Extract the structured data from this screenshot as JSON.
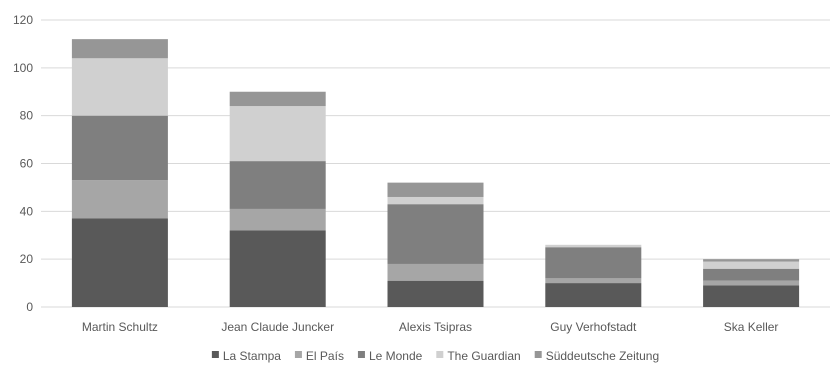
{
  "chart_data": {
    "type": "bar",
    "stacked": true,
    "categories": [
      "Martin Schultz",
      "Jean Claude Juncker",
      "Alexis Tsipras",
      "Guy Verhofstadt",
      "Ska Keller"
    ],
    "series": [
      {
        "name": "La Stampa",
        "color": "#595959",
        "values": [
          37,
          32,
          11,
          10,
          9
        ]
      },
      {
        "name": "El País",
        "color": "#a6a6a6",
        "values": [
          16,
          9,
          7,
          2,
          2
        ]
      },
      {
        "name": "Le Monde",
        "color": "#7f7f7f",
        "values": [
          27,
          20,
          25,
          13,
          5
        ]
      },
      {
        "name": "The Guardian",
        "color": "#d0d0d0",
        "values": [
          24,
          23,
          3,
          1,
          3
        ]
      },
      {
        "name": "Süddeutsche Zeitung",
        "color": "#969696",
        "values": [
          8,
          6,
          6,
          0,
          1
        ]
      }
    ],
    "y_ticks": [
      0,
      20,
      40,
      60,
      80,
      100,
      120
    ],
    "ylim": [
      0,
      120
    ],
    "title": "",
    "xlabel": "",
    "ylabel": "",
    "grid": true,
    "legend_position": "bottom"
  }
}
